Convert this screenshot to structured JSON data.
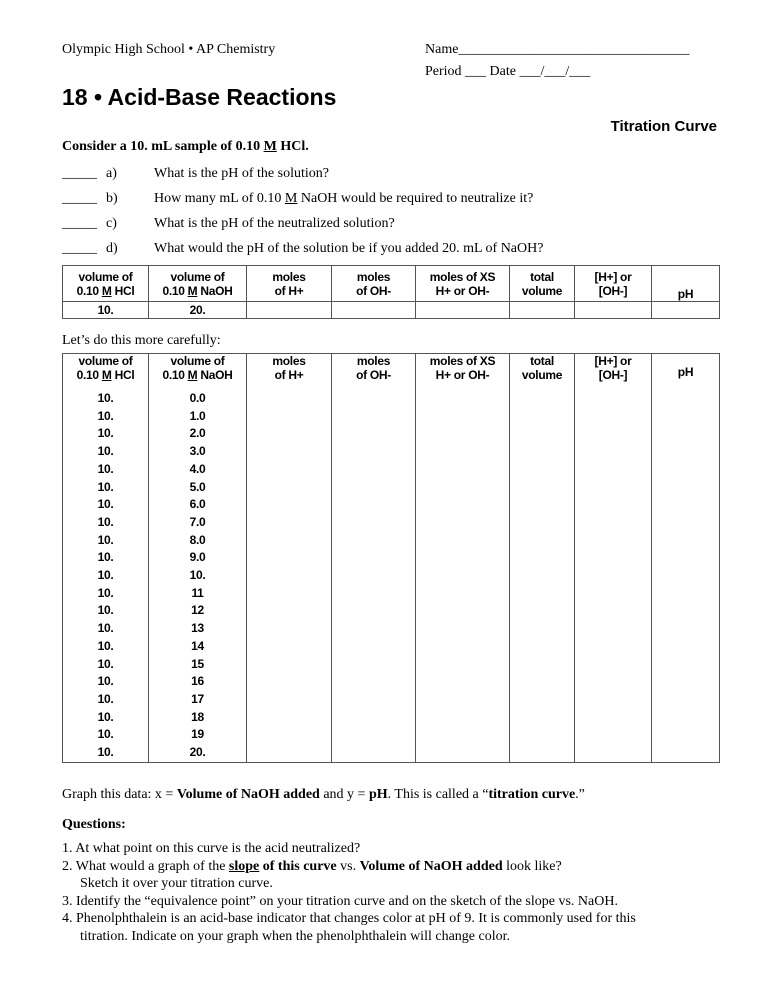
{
  "header": {
    "school": "Olympic High School • AP Chemistry",
    "name_label": "Name",
    "name_blank": "_________________________________",
    "period_line": "Period ___  Date ___/___/___"
  },
  "title": "18 • Acid-Base Reactions",
  "subtitle": "Titration Curve",
  "intro": {
    "pre": "Consider a 10. mL sample of 0.10 ",
    "m": "M",
    "post": " HCl."
  },
  "questions_short": [
    {
      "blank": "_____",
      "letter": "a)",
      "text": "What is the pH of the solution?"
    },
    {
      "blank": "_____",
      "letter": "b)",
      "text_pre": "How many mL of 0.10 ",
      "m": "M",
      "text_post": " NaOH would be required to neutralize it?"
    },
    {
      "blank": "_____",
      "letter": "c)",
      "text": "What is the pH of the neutralized solution?"
    },
    {
      "blank": "_____",
      "letter": "d)",
      "text": "What would the pH of the solution be if you added 20. mL of NaOH?"
    }
  ],
  "table_headers": {
    "hcl": [
      "volume of",
      "0.10 ",
      "M",
      " HCl"
    ],
    "naoh": [
      "volume of",
      "0.10 ",
      "M",
      " NaOH"
    ],
    "moles_h": [
      "moles",
      "of H+"
    ],
    "moles_oh": [
      "moles",
      "of OH-"
    ],
    "xs": [
      "moles of XS",
      "H+ or OH-"
    ],
    "total": [
      "total",
      "volume"
    ],
    "conc": [
      "[H+] or",
      "[OH-]"
    ],
    "ph": "pH"
  },
  "table1_row": [
    "10.",
    "20."
  ],
  "carefully": "Let’s do this more carefully:",
  "table2_rows": [
    [
      "10.",
      "0.0"
    ],
    [
      "10.",
      "1.0"
    ],
    [
      "10.",
      "2.0"
    ],
    [
      "10.",
      "3.0"
    ],
    [
      "10.",
      "4.0"
    ],
    [
      "10.",
      "5.0"
    ],
    [
      "10.",
      "6.0"
    ],
    [
      "10.",
      "7.0"
    ],
    [
      "10.",
      "8.0"
    ],
    [
      "10.",
      "9.0"
    ],
    [
      "10.",
      "10."
    ],
    [
      "10.",
      "11"
    ],
    [
      "10.",
      "12"
    ],
    [
      "10.",
      "13"
    ],
    [
      "10.",
      "14"
    ],
    [
      "10.",
      "15"
    ],
    [
      "10.",
      "16"
    ],
    [
      "10.",
      "17"
    ],
    [
      "10.",
      "18"
    ],
    [
      "10.",
      "19"
    ],
    [
      "10.",
      "20."
    ]
  ],
  "graph_text": {
    "a": "Graph this data: x = ",
    "b": "Volume of NaOH added",
    "c": " and y =  ",
    "d": "pH",
    "e": ".  This is called a “",
    "f": "titration curve",
    "g": ".”"
  },
  "questions_heading": "Questions:",
  "questions": {
    "q1": "1.  At what point on this curve is the acid neutralized?",
    "q2a": "2.  What would a graph of the ",
    "q2b": "slope",
    "q2c": " of this curve",
    "q2d": " vs. ",
    "q2e": "Volume of NaOH added",
    "q2f": " look like?",
    "q2g": "Sketch it over your titration curve.",
    "q3": "3.  Identify the “equivalence point” on your titration curve and on the sketch of the slope vs. NaOH.",
    "q4a": "4.  Phenolphthalein is an acid-base indicator that changes color at pH of 9.  It is commonly used for this",
    "q4b": "titration.  Indicate on your graph when the phenolphthalein will change color."
  }
}
